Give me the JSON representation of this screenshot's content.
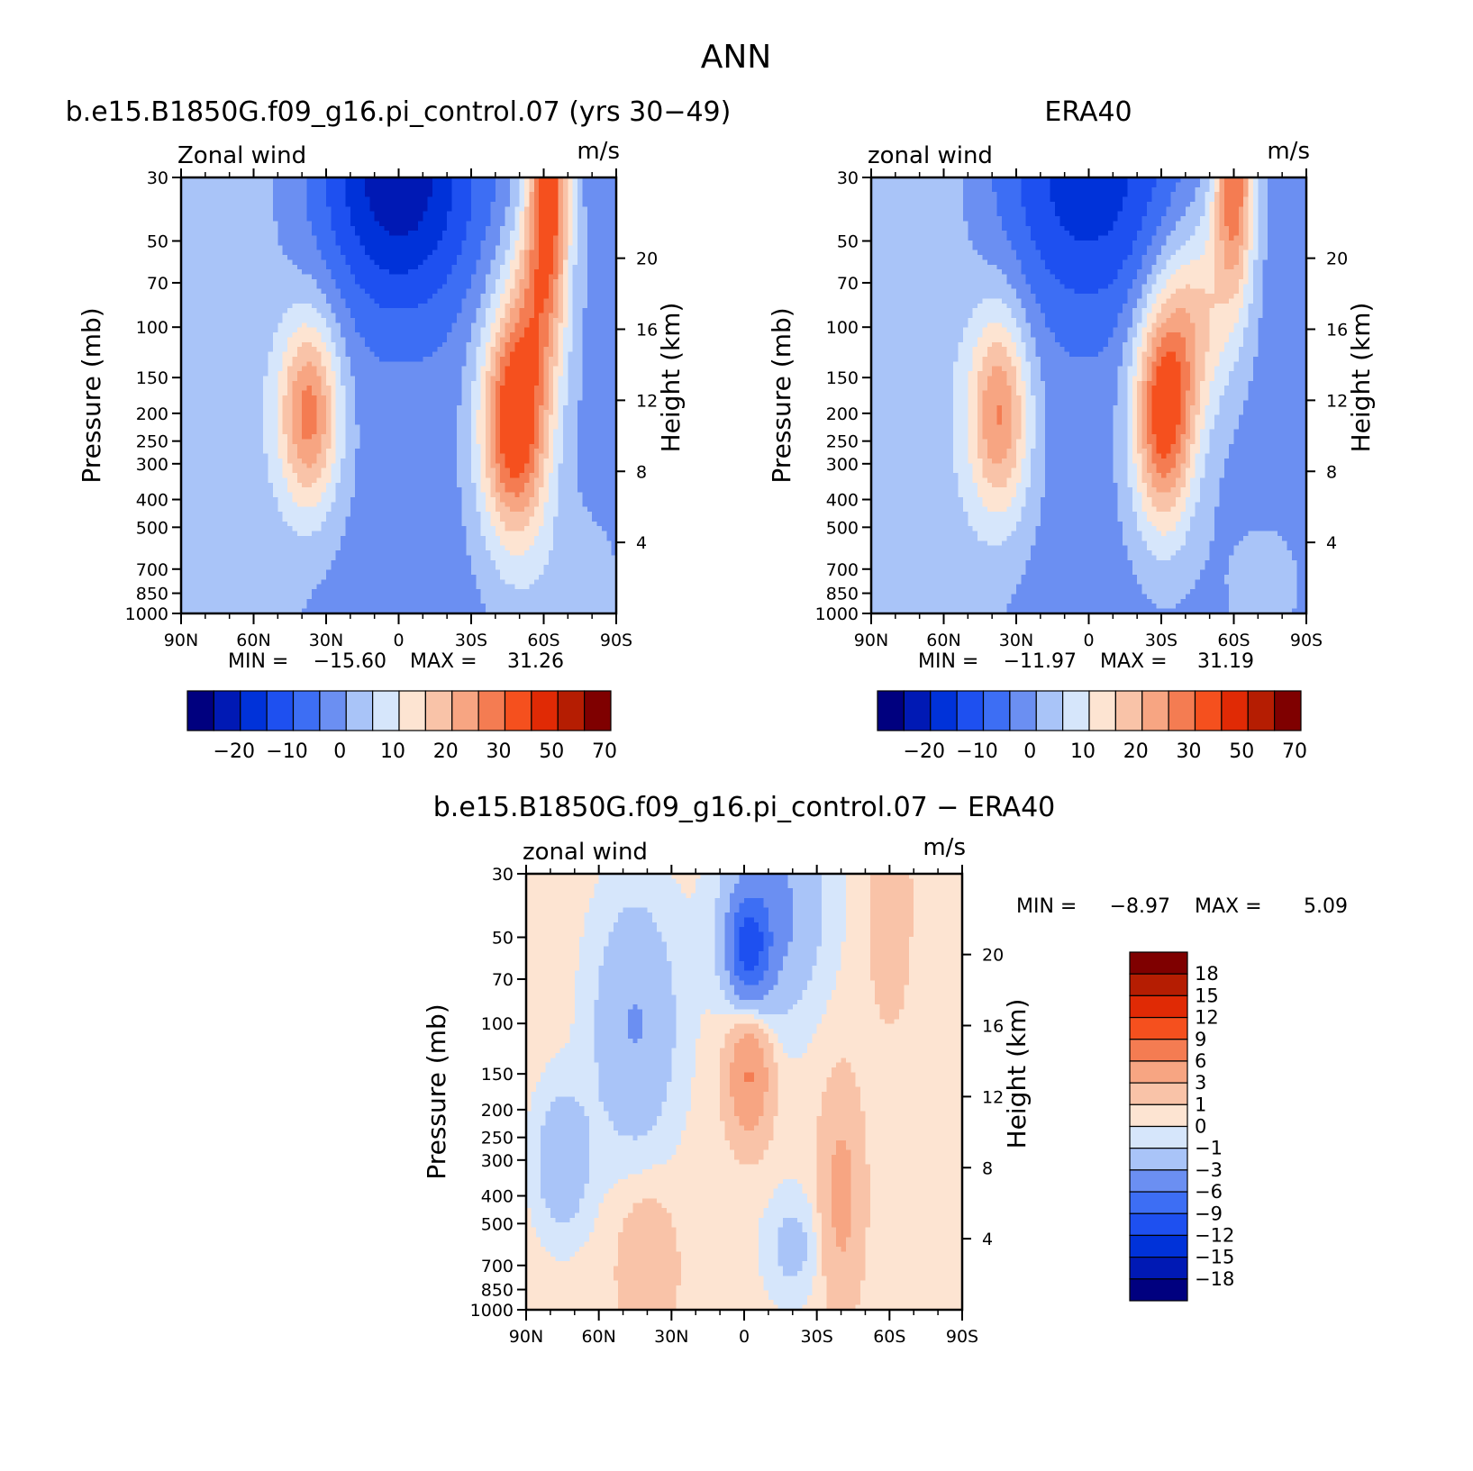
{
  "figure": {
    "season": "ANN"
  },
  "chart_data": [
    {
      "type": "heatmap",
      "title": "b.e15.B1850G.f09_g16.pi_control.07 (yrs 30−49)",
      "left_string": "Zonal wind",
      "right_string": "m/s",
      "ylabel": "Pressure (mb)",
      "ylabel_right": "Height (km)",
      "y_log_scale": true,
      "ylim": [
        1000,
        30
      ],
      "y_ticks": [
        30,
        50,
        70,
        100,
        150,
        200,
        250,
        300,
        400,
        500,
        700,
        850,
        1000
      ],
      "height_ticks": [
        4,
        8,
        12,
        16,
        20
      ],
      "x_ticks": [
        "90N",
        "60N",
        "30N",
        "0",
        "30S",
        "60S",
        "90S"
      ],
      "min_label": "MIN =",
      "min_value": "−15.60",
      "max_label": "MAX =",
      "max_value": "31.26",
      "colorbar_labels": [
        "−20",
        "−10",
        "0",
        "10",
        "20",
        "30",
        "50",
        "70"
      ],
      "jets": [
        {
          "lat": 37,
          "p": 200,
          "peak": 23
        },
        {
          "lat": -48,
          "p": 220,
          "peak": 31
        },
        {
          "lat": -62,
          "p": 30,
          "peak": 31
        }
      ]
    },
    {
      "type": "heatmap",
      "title": "ERA40",
      "left_string": "zonal wind",
      "right_string": "m/s",
      "ylabel": "Pressure (mb)",
      "ylabel_right": "Height (km)",
      "y_log_scale": true,
      "ylim": [
        1000,
        30
      ],
      "y_ticks": [
        30,
        50,
        70,
        100,
        150,
        200,
        250,
        300,
        400,
        500,
        700,
        850,
        1000
      ],
      "height_ticks": [
        4,
        8,
        12,
        16,
        20
      ],
      "x_ticks": [
        "90N",
        "60N",
        "30N",
        "0",
        "30S",
        "60S",
        "90S"
      ],
      "min_label": "MIN =",
      "min_value": "−11.97",
      "max_label": "MAX =",
      "max_value": "31.19",
      "colorbar_labels": [
        "−20",
        "−10",
        "0",
        "10",
        "20",
        "30",
        "50",
        "70"
      ],
      "jets": [
        {
          "lat": 37,
          "p": 200,
          "peak": 21
        },
        {
          "lat": -31,
          "p": 200,
          "peak": 31
        },
        {
          "lat": -60,
          "p": 30,
          "peak": 31
        }
      ]
    },
    {
      "type": "heatmap",
      "title": "b.e15.B1850G.f09_g16.pi_control.07 − ERA40",
      "left_string": "zonal wind",
      "right_string": "m/s",
      "ylabel": "Pressure (mb)",
      "ylabel_right": "Height (km)",
      "y_log_scale": true,
      "ylim": [
        1000,
        30
      ],
      "y_ticks": [
        30,
        50,
        70,
        100,
        150,
        200,
        250,
        300,
        400,
        500,
        700,
        850,
        1000
      ],
      "height_ticks": [
        4,
        8,
        12,
        16,
        20
      ],
      "x_ticks": [
        "90N",
        "60N",
        "30N",
        "0",
        "30S",
        "60S",
        "90S"
      ],
      "min_label": "MIN =",
      "min_value": "−8.97",
      "max_label": "MAX =",
      "max_value": "5.09",
      "colorbar_labels": [
        "18",
        "15",
        "12",
        "9",
        "6",
        "3",
        "1",
        "0",
        "−1",
        "−3",
        "−6",
        "−9",
        "−12",
        "−15",
        "−18"
      ],
      "difference_extremes": [
        {
          "lat": -2,
          "p": 150,
          "value": 5.09
        },
        {
          "lat": -2,
          "p": 55,
          "value": -8.97
        }
      ]
    }
  ],
  "palette": {
    "colors": [
      "#00007f",
      "#0019b4",
      "#0032d9",
      "#1e50f0",
      "#3d6ef4",
      "#6b8ff2",
      "#a9c4f8",
      "#d6e6fb",
      "#fde4d2",
      "#f9c3a8",
      "#f7a582",
      "#f47c52",
      "#f5501e",
      "#e02a05",
      "#b51d02",
      "#7f0000"
    ]
  }
}
